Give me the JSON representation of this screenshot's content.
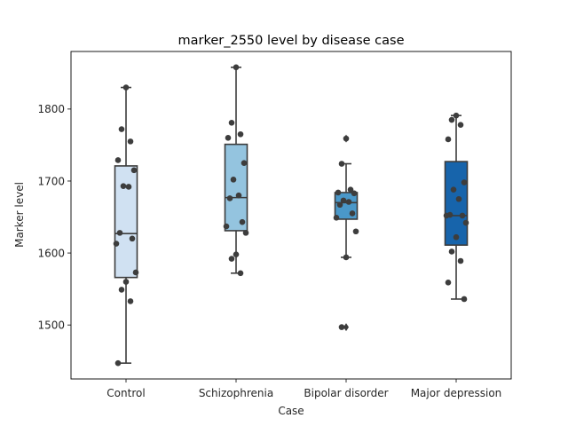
{
  "chart_data": {
    "type": "box",
    "title": "marker_2550 level by disease case",
    "xlabel": "Case",
    "ylabel": "Marker level",
    "ylim": [
      1425,
      1880
    ],
    "yticks": [
      1500,
      1600,
      1700,
      1800
    ],
    "ytick_labels": [
      "1500",
      "1600",
      "1700",
      "1800"
    ],
    "categories": [
      "Control",
      "Schizophrenia",
      "Bipolar disorder",
      "Major depression"
    ],
    "colors": [
      "#d0e1f2",
      "#94c4df",
      "#4a98c9",
      "#1764ab"
    ],
    "grid": false,
    "legend": "none",
    "boxes": [
      {
        "q1": 1566,
        "median": 1627,
        "q3": 1721,
        "whisker_low": 1447,
        "whisker_high": 1830,
        "outliers": []
      },
      {
        "q1": 1631,
        "median": 1677,
        "q3": 1751,
        "whisker_low": 1572,
        "whisker_high": 1858,
        "outliers": []
      },
      {
        "q1": 1647,
        "median": 1670,
        "q3": 1684,
        "whisker_low": 1594,
        "whisker_high": 1724,
        "outliers": [
          1759,
          1497
        ]
      },
      {
        "q1": 1611,
        "median": 1652,
        "q3": 1727,
        "whisker_low": 1536,
        "whisker_high": 1791,
        "outliers": []
      }
    ],
    "points": [
      [
        1830,
        1772,
        1755,
        1729,
        1715,
        1693,
        1692,
        1628,
        1620,
        1613,
        1573,
        1560,
        1549,
        1533,
        1447
      ],
      [
        1858,
        1781,
        1765,
        1760,
        1725,
        1702,
        1680,
        1676,
        1643,
        1637,
        1628,
        1598,
        1592,
        1572
      ],
      [
        1759,
        1724,
        1688,
        1684,
        1683,
        1673,
        1671,
        1667,
        1655,
        1649,
        1630,
        1594,
        1497
      ],
      [
        1791,
        1785,
        1778,
        1758,
        1698,
        1688,
        1675,
        1653,
        1652,
        1652,
        1642,
        1622,
        1602,
        1589,
        1559,
        1536
      ]
    ]
  }
}
